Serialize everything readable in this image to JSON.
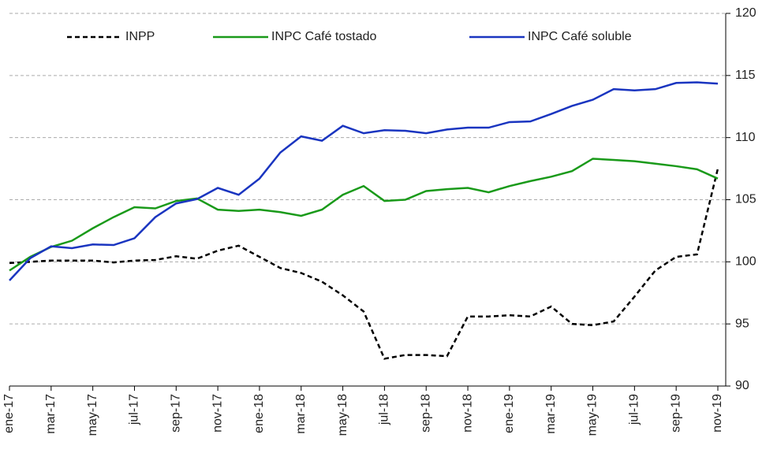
{
  "chart_data": {
    "type": "line",
    "categories": [
      "ene-17",
      null,
      "mar-17",
      null,
      "may-17",
      null,
      "jul-17",
      null,
      "sep-17",
      null,
      "nov-17",
      null,
      "ene-18",
      null,
      "mar-18",
      null,
      "may-18",
      null,
      "jul-18",
      null,
      "sep-18",
      null,
      "nov-18",
      null,
      "ene-19",
      null,
      "mar-19",
      null,
      "may-19",
      null,
      "jul-19",
      null,
      "sep-19",
      null,
      "nov-19"
    ],
    "series": [
      {
        "name": "INPP",
        "color": "#000000",
        "dashed": true,
        "values": [
          99.9,
          100.0,
          100.1,
          100.1,
          100.1,
          99.95,
          100.1,
          100.15,
          100.45,
          100.25,
          100.9,
          101.3,
          100.4,
          99.5,
          99.1,
          98.4,
          97.3,
          96.0,
          92.2,
          92.5,
          92.5,
          92.4,
          95.6,
          95.6,
          95.7,
          95.6,
          96.4,
          95.0,
          94.9,
          95.2,
          97.2,
          99.3,
          100.4,
          100.6,
          107.5
        ]
      },
      {
        "name": "INPC Café tostado",
        "color": "#1a9a1a",
        "values": [
          99.3,
          100.4,
          101.2,
          101.7,
          102.7,
          103.6,
          104.4,
          104.3,
          104.9,
          105.1,
          104.2,
          104.1,
          104.2,
          104.0,
          103.7,
          104.2,
          105.4,
          106.1,
          104.9,
          105.0,
          105.7,
          105.85,
          105.95,
          105.6,
          106.1,
          106.5,
          106.85,
          107.3,
          108.3,
          108.2,
          108.1,
          107.9,
          107.7,
          107.45,
          106.7
        ]
      },
      {
        "name": "INPC Café soluble",
        "color": "#1a35c0",
        "values": [
          98.5,
          100.3,
          101.25,
          101.1,
          101.4,
          101.35,
          101.9,
          103.6,
          104.7,
          105.05,
          105.95,
          105.4,
          106.7,
          108.8,
          110.1,
          109.75,
          110.95,
          110.35,
          110.6,
          110.55,
          110.35,
          110.65,
          110.8,
          110.8,
          111.25,
          111.3,
          111.9,
          112.55,
          113.05,
          113.9,
          113.8,
          113.9,
          114.4,
          114.45,
          114.35
        ]
      }
    ],
    "ylim": [
      90,
      120
    ],
    "yticks": [
      90,
      95,
      100,
      105,
      110,
      115,
      120
    ],
    "grid": true,
    "y_axis_side": "right",
    "legend": "top"
  }
}
